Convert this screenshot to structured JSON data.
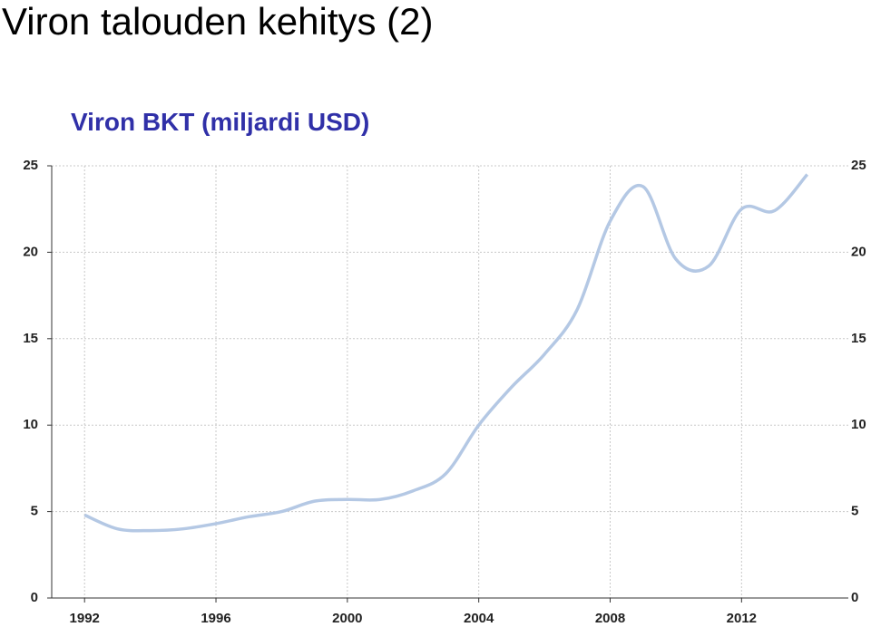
{
  "chart_data": {
    "type": "line",
    "title": "Viron talouden kehitys (2)",
    "subtitle": "Viron BKT (miljardi USD)",
    "x": [
      1992,
      1993,
      1994,
      1995,
      1996,
      1997,
      1998,
      1999,
      2000,
      2001,
      2002,
      2003,
      2004,
      2005,
      2006,
      2007,
      2008,
      2009,
      2010,
      2011,
      2012,
      2013,
      2014
    ],
    "values": [
      4.8,
      4.0,
      3.9,
      4.0,
      4.3,
      4.7,
      5.0,
      5.6,
      5.7,
      5.7,
      6.2,
      7.2,
      10.0,
      12.2,
      14.1,
      16.7,
      21.8,
      23.8,
      19.6,
      19.2,
      22.5,
      22.4,
      24.5
    ],
    "color": "#b4c8e4",
    "xlim": [
      1991,
      2015.25
    ],
    "ylim": [
      0,
      25
    ],
    "xticks": [
      1992,
      1996,
      2000,
      2004,
      2008,
      2012
    ],
    "yticks": [
      0,
      5,
      10,
      15,
      20,
      25
    ],
    "grid": true
  }
}
